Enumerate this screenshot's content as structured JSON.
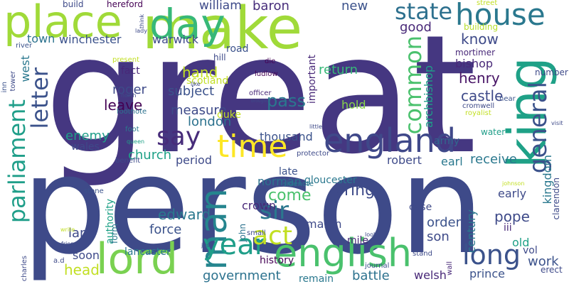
{
  "words": [
    {
      "text": "great",
      "color": "#453781"
    },
    {
      "text": "person",
      "color": "#3e4a89"
    },
    {
      "text": "make",
      "color": "#a0da39"
    },
    {
      "text": "place",
      "color": "#a0da39"
    },
    {
      "text": "day",
      "color": "#37b878"
    },
    {
      "text": "king",
      "color": "#1fa187"
    },
    {
      "text": "lord",
      "color": "#7ad151"
    },
    {
      "text": "english",
      "color": "#4ac16d"
    },
    {
      "text": "england",
      "color": "#3f4889"
    },
    {
      "text": "house",
      "color": "#2a788e"
    },
    {
      "text": "state",
      "color": "#2d708e"
    },
    {
      "text": "time",
      "color": "#fde725"
    },
    {
      "text": "say",
      "color": "#472c7a"
    },
    {
      "text": "man",
      "color": "#25858e"
    },
    {
      "text": "parliament",
      "color": "#1f9e89"
    },
    {
      "text": "letter",
      "color": "#3b528b"
    },
    {
      "text": "general",
      "color": "#3b528b"
    },
    {
      "text": "year",
      "color": "#1f9e89"
    },
    {
      "text": "long",
      "color": "#3b528b"
    },
    {
      "text": "act",
      "color": "#c2df23"
    },
    {
      "text": "sir",
      "color": "#2a788e"
    },
    {
      "text": "common",
      "color": "#4ac16d"
    },
    {
      "text": "government",
      "color": "#2c728e"
    },
    {
      "text": "william",
      "color": "#3e4a89"
    },
    {
      "text": "baron",
      "color": "#472d7b"
    },
    {
      "text": "new",
      "color": "#3b528b"
    },
    {
      "text": "good",
      "color": "#482878"
    },
    {
      "text": "know",
      "color": "#3e4a89"
    },
    {
      "text": "pass",
      "color": "#2a788e"
    },
    {
      "text": "london",
      "color": "#2c728e"
    },
    {
      "text": "measure",
      "color": "#3e4a89"
    },
    {
      "text": "subject",
      "color": "#3b528b"
    },
    {
      "text": "hand",
      "color": "#c2df23"
    },
    {
      "text": "leave",
      "color": "#440154"
    },
    {
      "text": "roger",
      "color": "#3e4a89"
    },
    {
      "text": "fact",
      "color": "#482878"
    },
    {
      "text": "return",
      "color": "#37b878"
    },
    {
      "text": "henry",
      "color": "#471365"
    },
    {
      "text": "bishop",
      "color": "#482878"
    },
    {
      "text": "castle",
      "color": "#3e4a89"
    },
    {
      "text": "hold",
      "color": "#86d549"
    },
    {
      "text": "army",
      "color": "#31688e"
    },
    {
      "text": "thousand",
      "color": "#3b528b"
    },
    {
      "text": "church",
      "color": "#1fa187"
    },
    {
      "text": "enemy",
      "color": "#1f9e89"
    },
    {
      "text": "wales",
      "color": "#3e4a89"
    },
    {
      "text": "duke",
      "color": "#c2df23"
    },
    {
      "text": "receive",
      "color": "#2a788e"
    },
    {
      "text": "earl",
      "color": "#2a788e"
    },
    {
      "text": "robert",
      "color": "#3e4a89"
    },
    {
      "text": "period",
      "color": "#3e4a89"
    },
    {
      "text": "bring",
      "color": "#3e4a89"
    },
    {
      "text": "come",
      "color": "#4ac16d"
    },
    {
      "text": "crown",
      "color": "#482878"
    },
    {
      "text": "norman",
      "color": "#2c728e"
    },
    {
      "text": "late",
      "color": "#3b528b"
    },
    {
      "text": "edward",
      "color": "#2a788e"
    },
    {
      "text": "force",
      "color": "#3b528b"
    },
    {
      "text": "land",
      "color": "#3e4a89"
    },
    {
      "text": "head",
      "color": "#c2df23"
    },
    {
      "text": "soon",
      "color": "#3e4a89"
    },
    {
      "text": "history",
      "color": "#440154"
    },
    {
      "text": "battle",
      "color": "#2c728e"
    },
    {
      "text": "welsh",
      "color": "#482878"
    },
    {
      "text": "remain",
      "color": "#2a788e"
    },
    {
      "text": "prince",
      "color": "#3b528b"
    },
    {
      "text": "order",
      "color": "#3b528b"
    },
    {
      "text": "son",
      "color": "#3e4a89"
    },
    {
      "text": "case",
      "color": "#3e4a89"
    },
    {
      "text": "pope",
      "color": "#3e4a89"
    },
    {
      "text": "iii",
      "color": "#482878"
    },
    {
      "text": "old",
      "color": "#1fa187"
    },
    {
      "text": "early",
      "color": "#3e4a89"
    },
    {
      "text": "work",
      "color": "#3b528b"
    },
    {
      "text": "vol",
      "color": "#3e4a89"
    },
    {
      "text": "march",
      "color": "#3e4a89"
    },
    {
      "text": "mile",
      "color": "#482878"
    },
    {
      "text": "town",
      "color": "#2c728e"
    },
    {
      "text": "winchester",
      "color": "#3b528b"
    },
    {
      "text": "warwick",
      "color": "#3e4a89"
    },
    {
      "text": "road",
      "color": "#3b528b"
    },
    {
      "text": "scotland",
      "color": "#c2df23"
    },
    {
      "text": "gloucester",
      "color": "#2a788e"
    },
    {
      "text": "lancaster",
      "color": "#2a788e"
    },
    {
      "text": "mortimer",
      "color": "#482878"
    },
    {
      "text": "archbishop",
      "color": "#1f9e89"
    },
    {
      "text": "kingdom",
      "color": "#2a788e"
    },
    {
      "text": "century",
      "color": "#2a788e"
    },
    {
      "text": "authority",
      "color": "#1fa187"
    },
    {
      "text": "form",
      "color": "#2a788e"
    },
    {
      "text": "john",
      "color": "#2c728e"
    },
    {
      "text": "important",
      "color": "#482878"
    },
    {
      "text": "west",
      "color": "#2a788e"
    },
    {
      "text": "water",
      "color": "#1f9e89"
    },
    {
      "text": "hereford",
      "color": "#440154"
    },
    {
      "text": "build",
      "color": "#3e4a89"
    },
    {
      "text": "building",
      "color": "#b5de2b"
    },
    {
      "text": "street",
      "color": "#c2df23"
    },
    {
      "text": "near",
      "color": "#3b528b"
    },
    {
      "text": "number",
      "color": "#3e4a89"
    },
    {
      "text": "present",
      "color": "#c2df23"
    },
    {
      "text": "hill",
      "color": "#3e4a89"
    },
    {
      "text": "die",
      "color": "#440154"
    },
    {
      "text": "ludlow",
      "color": "#440154"
    },
    {
      "text": "officer",
      "color": "#482878"
    },
    {
      "text": "north",
      "color": "#3e4a89"
    },
    {
      "text": "footnote",
      "color": "#2c728e"
    },
    {
      "text": "foot",
      "color": "#2a788e"
    },
    {
      "text": "queen",
      "color": "#1fa187"
    },
    {
      "text": "benefit",
      "color": "#3e4a89"
    },
    {
      "text": "sidenote",
      "color": "#2a788e"
    },
    {
      "text": "protector",
      "color": "#3e4a89"
    },
    {
      "text": "cromwell",
      "color": "#3e4a89"
    },
    {
      "text": "royalist",
      "color": "#c2df23"
    },
    {
      "text": "river",
      "color": "#3b528b"
    },
    {
      "text": "inn",
      "color": "#3b528b"
    },
    {
      "text": "tower",
      "color": "#3e4a89"
    },
    {
      "text": "stone",
      "color": "#3b528b"
    },
    {
      "text": "charles",
      "color": "#3e4a89"
    },
    {
      "text": "a.d",
      "color": "#3e4a89"
    },
    {
      "text": "friend",
      "color": "#3e4a89"
    },
    {
      "text": "write",
      "color": "#c2df23"
    },
    {
      "text": "small",
      "color": "#3e4a89"
    },
    {
      "text": "just",
      "color": "#3b528b"
    },
    {
      "text": "journal",
      "color": "#3b528b"
    },
    {
      "text": "stand",
      "color": "#3e4a89"
    },
    {
      "text": "wall",
      "color": "#482878"
    },
    {
      "text": "erect",
      "color": "#3e4a89"
    },
    {
      "text": "clarendon",
      "color": "#3e4a89"
    },
    {
      "text": "lady",
      "color": "#3e4a89"
    },
    {
      "text": "think",
      "color": "#3e4a89"
    },
    {
      "text": "like",
      "color": "#3e4a89"
    },
    {
      "text": "brought",
      "color": "#3e4a89"
    },
    {
      "text": "little",
      "color": "#3e4a89"
    },
    {
      "text": "look",
      "color": "#3e4a89"
    },
    {
      "text": "visit",
      "color": "#3e4a89"
    },
    {
      "text": "johnson",
      "color": "#c2df23"
    }
  ]
}
